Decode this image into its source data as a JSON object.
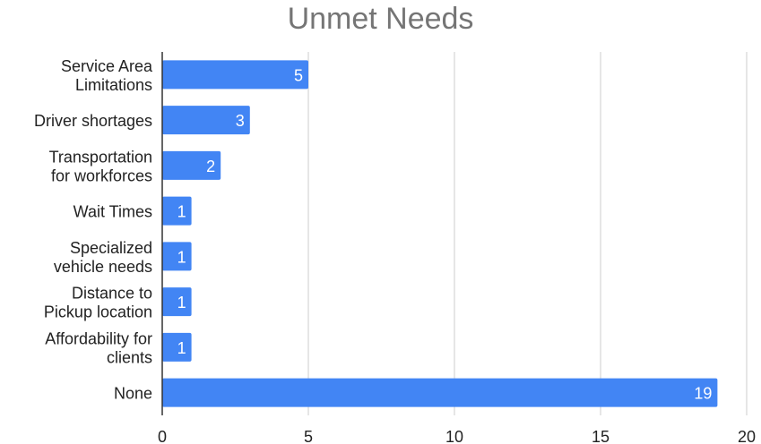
{
  "chart_data": {
    "type": "bar",
    "orientation": "horizontal",
    "title": "Unmet Needs",
    "xlabel": "",
    "ylabel": "",
    "xlim": [
      0,
      20
    ],
    "x_ticks": [
      "0",
      "5",
      "10",
      "15",
      "20"
    ],
    "grid": true,
    "legend": "none",
    "bar_color": "#4285f4",
    "categories": [
      [
        "Service Area",
        "Limitations"
      ],
      [
        "Driver shortages"
      ],
      [
        "Transportation",
        "for workforces"
      ],
      [
        "Wait Times"
      ],
      [
        "Specialized",
        "vehicle needs"
      ],
      [
        "Distance to",
        "Pickup location"
      ],
      [
        "Affordability for",
        "clients"
      ],
      [
        "None"
      ]
    ],
    "values": [
      5,
      3,
      2,
      1,
      1,
      1,
      1,
      19
    ]
  }
}
